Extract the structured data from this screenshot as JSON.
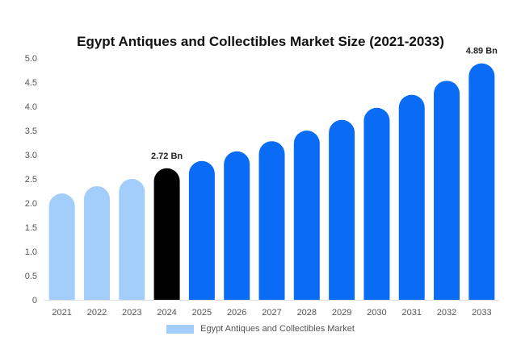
{
  "chart_data": {
    "type": "bar",
    "title": "Egypt Antiques and Collectibles Market Size (2021-2033)",
    "categories": [
      "2021",
      "2022",
      "2023",
      "2024",
      "2025",
      "2026",
      "2027",
      "2028",
      "2029",
      "2030",
      "2031",
      "2032",
      "2033"
    ],
    "series": [
      {
        "name": "Egypt Antiques and Collectibles Market",
        "values": [
          2.2,
          2.35,
          2.5,
          2.72,
          2.87,
          3.07,
          3.28,
          3.5,
          3.72,
          3.97,
          4.24,
          4.53,
          4.89
        ]
      }
    ],
    "ylim": [
      0,
      5
    ],
    "y_ticks": [
      "0",
      "0.5",
      "1.0",
      "1.5",
      "2.0",
      "2.5",
      "3.0",
      "3.5",
      "4.0",
      "4.5",
      "5.0"
    ],
    "data_labels": [
      {
        "category": "2024",
        "text": "2.72 Bn"
      },
      {
        "category": "2033",
        "text": "4.89 Bn"
      }
    ],
    "grid": false,
    "legend_position": "bottom",
    "colors": {
      "historical": "#a3cdfb",
      "base_year": "#000000",
      "forecast": "#0a6cf5"
    },
    "bar_color_groups": [
      "historical",
      "historical",
      "historical",
      "base_year",
      "forecast",
      "forecast",
      "forecast",
      "forecast",
      "forecast",
      "forecast",
      "forecast",
      "forecast",
      "forecast"
    ]
  }
}
